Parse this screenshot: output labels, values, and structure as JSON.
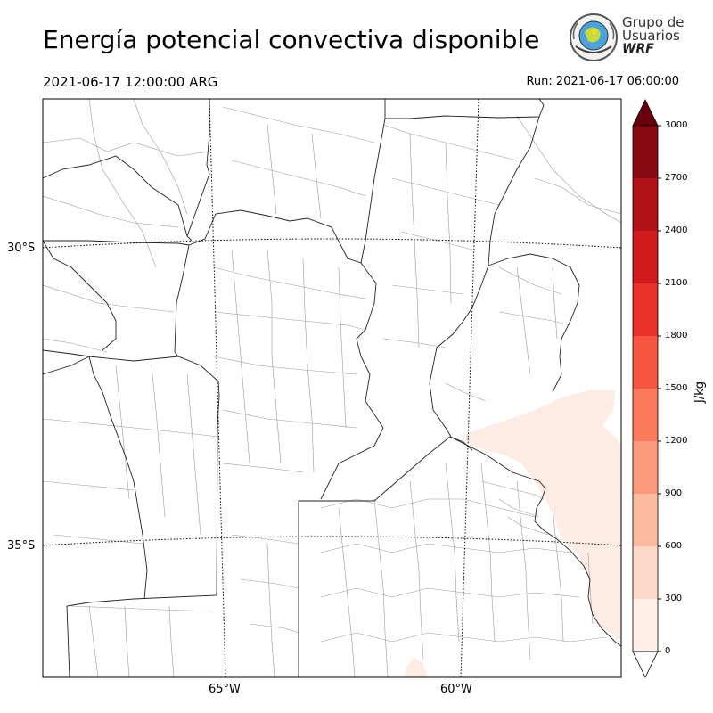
{
  "header": {
    "title": "Energía potencial convectiva disponible",
    "valid_time": "2021-06-17 12:00:00 ARG",
    "run_time": "Run: 2021-06-17 06:00:00"
  },
  "logo": {
    "line1": "Grupo de",
    "line2": "Usuarios",
    "line3": "WRF"
  },
  "map": {
    "variable": "CAPE",
    "graticule": {
      "latitudes": [
        "30°S",
        "35°S"
      ],
      "longitudes": [
        "65°W",
        "60°W"
      ]
    }
  },
  "colorbar": {
    "unit": "J/kg",
    "ticks": [
      "0",
      "300",
      "600",
      "900",
      "1200",
      "1500",
      "1800",
      "2100",
      "2400",
      "2700",
      "3000"
    ],
    "colors": [
      "#fff0e8",
      "#fdd9c9",
      "#fcbba1",
      "#fc9a7e",
      "#fb7a5b",
      "#f6563e",
      "#e83229",
      "#cf1b1d",
      "#b01218",
      "#8a0a13",
      "#67000d"
    ]
  },
  "chart_data": {
    "type": "heatmap",
    "title": "Energía potencial convectiva disponible",
    "colorbar_label": "J/kg",
    "colorbar_range": [
      0,
      3000
    ],
    "colorbar_step": 300,
    "colorbar_extend": "both",
    "shaded_areas": [
      {
        "region": "Río de la Plata / southern Entre Ríos / eastern Buenos Aires coast",
        "range": "0-300 J/kg"
      },
      {
        "region": "Small patch near southern edge, central Buenos Aires",
        "range": "0-300 J/kg"
      }
    ],
    "graticule_lat": [
      "30°S",
      "35°S"
    ],
    "graticule_lon": [
      "65°W",
      "60°W"
    ]
  }
}
